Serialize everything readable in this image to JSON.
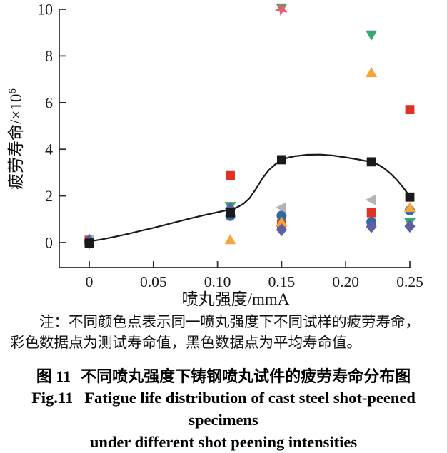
{
  "figure": {
    "note_line1": "注：不同颜色点表示同一喷丸强度下不同试样的疲劳寿命，",
    "note_line2": "彩色数据点为测试寿命值，黑色数据点为平均寿命值。",
    "caption_zh_label": "图 11",
    "caption_zh_text": "不同喷丸强度下铸钢喷丸试件的疲劳寿命分布图",
    "caption_en_label": "Fig.11",
    "caption_en_line1": "Fatigue life distribution of cast steel shot-peened specimens",
    "caption_en_line2": "under different shot peening intensities"
  },
  "chart_data": {
    "type": "scatter",
    "title": "",
    "xlabel": "喷丸强度/mmA",
    "ylabel": "疲劳寿命/×10",
    "ylabel_superscript": "6",
    "xlim": [
      -0.0234,
      0.2556
    ],
    "ylim": [
      -1.07,
      10.06
    ],
    "xticks": [
      0,
      0.05,
      0.1,
      0.15,
      0.2,
      0.25
    ],
    "xtick_labels": [
      "0",
      "0.05",
      "0.10",
      "0.15",
      "0.20",
      "0.25"
    ],
    "yticks": [
      0,
      2,
      4,
      6,
      8,
      10
    ],
    "ytick_labels": [
      "0",
      "2",
      "4",
      "6",
      "8",
      "10"
    ],
    "grid": false,
    "legend": "none",
    "axis_color": "#2b2b2b",
    "series": [
      {
        "name": "specimen-green-triangle-down",
        "marker": "triangle-down",
        "color": "#3aa76d",
        "points": [
          [
            0,
            -0.06
          ],
          [
            0.11,
            1.55
          ],
          [
            0.15,
            10.06
          ],
          [
            0.22,
            8.9
          ],
          [
            0.25,
            0.86
          ]
        ]
      },
      {
        "name": "specimen-salmon-star",
        "marker": "star",
        "color": "#e5606a",
        "points": [
          [
            0.15,
            10.0
          ]
        ]
      },
      {
        "name": "specimen-red-square",
        "marker": "square",
        "color": "#e03127",
        "points": [
          [
            0,
            0.1
          ],
          [
            0.11,
            2.87
          ],
          [
            0.15,
            0.8
          ],
          [
            0.22,
            1.28
          ],
          [
            0.25,
            5.7
          ]
        ]
      },
      {
        "name": "specimen-blue-circle",
        "marker": "circle",
        "color": "#34699f",
        "points": [
          [
            0,
            0.0
          ],
          [
            0.11,
            1.14
          ],
          [
            0.15,
            1.15
          ],
          [
            0.22,
            0.88
          ],
          [
            0.25,
            1.38
          ]
        ]
      },
      {
        "name": "specimen-orange-triangle-up",
        "marker": "triangle-up",
        "color": "#f3a73b",
        "points": [
          [
            0,
            0.05
          ],
          [
            0.11,
            0.12
          ],
          [
            0.15,
            0.87
          ],
          [
            0.22,
            7.28
          ],
          [
            0.25,
            1.5
          ]
        ]
      },
      {
        "name": "specimen-gray-triangle-left",
        "marker": "triangle-left",
        "color": "#b2b4b6",
        "points": [
          [
            0,
            0.12
          ],
          [
            0.15,
            1.5
          ],
          [
            0.22,
            1.83
          ]
        ]
      },
      {
        "name": "specimen-purple-diamond",
        "marker": "diamond",
        "color": "#5e60a2",
        "points": [
          [
            0,
            0.1
          ],
          [
            0.11,
            1.45
          ],
          [
            0.15,
            0.55
          ],
          [
            0.22,
            0.68
          ],
          [
            0.25,
            0.7
          ]
        ]
      },
      {
        "name": "average-black-square",
        "marker": "square",
        "color": "#1a1a1a",
        "points": [
          [
            0,
            -0.02
          ],
          [
            0.11,
            1.28
          ],
          [
            0.15,
            3.55
          ],
          [
            0.22,
            3.46
          ],
          [
            0.25,
            1.95
          ]
        ]
      }
    ],
    "fit_curve": {
      "name": "average-fit-curve",
      "color": "#1a1a1a",
      "points": [
        [
          0,
          0.05
        ],
        [
          0.01,
          0.14
        ],
        [
          0.02,
          0.25
        ],
        [
          0.03,
          0.37
        ],
        [
          0.04,
          0.5
        ],
        [
          0.05,
          0.63
        ],
        [
          0.06,
          0.77
        ],
        [
          0.07,
          0.91
        ],
        [
          0.08,
          1.05
        ],
        [
          0.09,
          1.18
        ],
        [
          0.1,
          1.3
        ],
        [
          0.11,
          1.42
        ],
        [
          0.115,
          1.5
        ],
        [
          0.12,
          1.65
        ],
        [
          0.125,
          1.9
        ],
        [
          0.13,
          2.3
        ],
        [
          0.135,
          2.75
        ],
        [
          0.14,
          3.1
        ],
        [
          0.145,
          3.35
        ],
        [
          0.15,
          3.55
        ],
        [
          0.155,
          3.64
        ],
        [
          0.16,
          3.7
        ],
        [
          0.17,
          3.76
        ],
        [
          0.18,
          3.77
        ],
        [
          0.19,
          3.73
        ],
        [
          0.2,
          3.65
        ],
        [
          0.21,
          3.56
        ],
        [
          0.22,
          3.45
        ],
        [
          0.225,
          3.35
        ],
        [
          0.23,
          3.18
        ],
        [
          0.235,
          2.95
        ],
        [
          0.24,
          2.68
        ],
        [
          0.245,
          2.35
        ],
        [
          0.25,
          1.97
        ]
      ]
    }
  }
}
